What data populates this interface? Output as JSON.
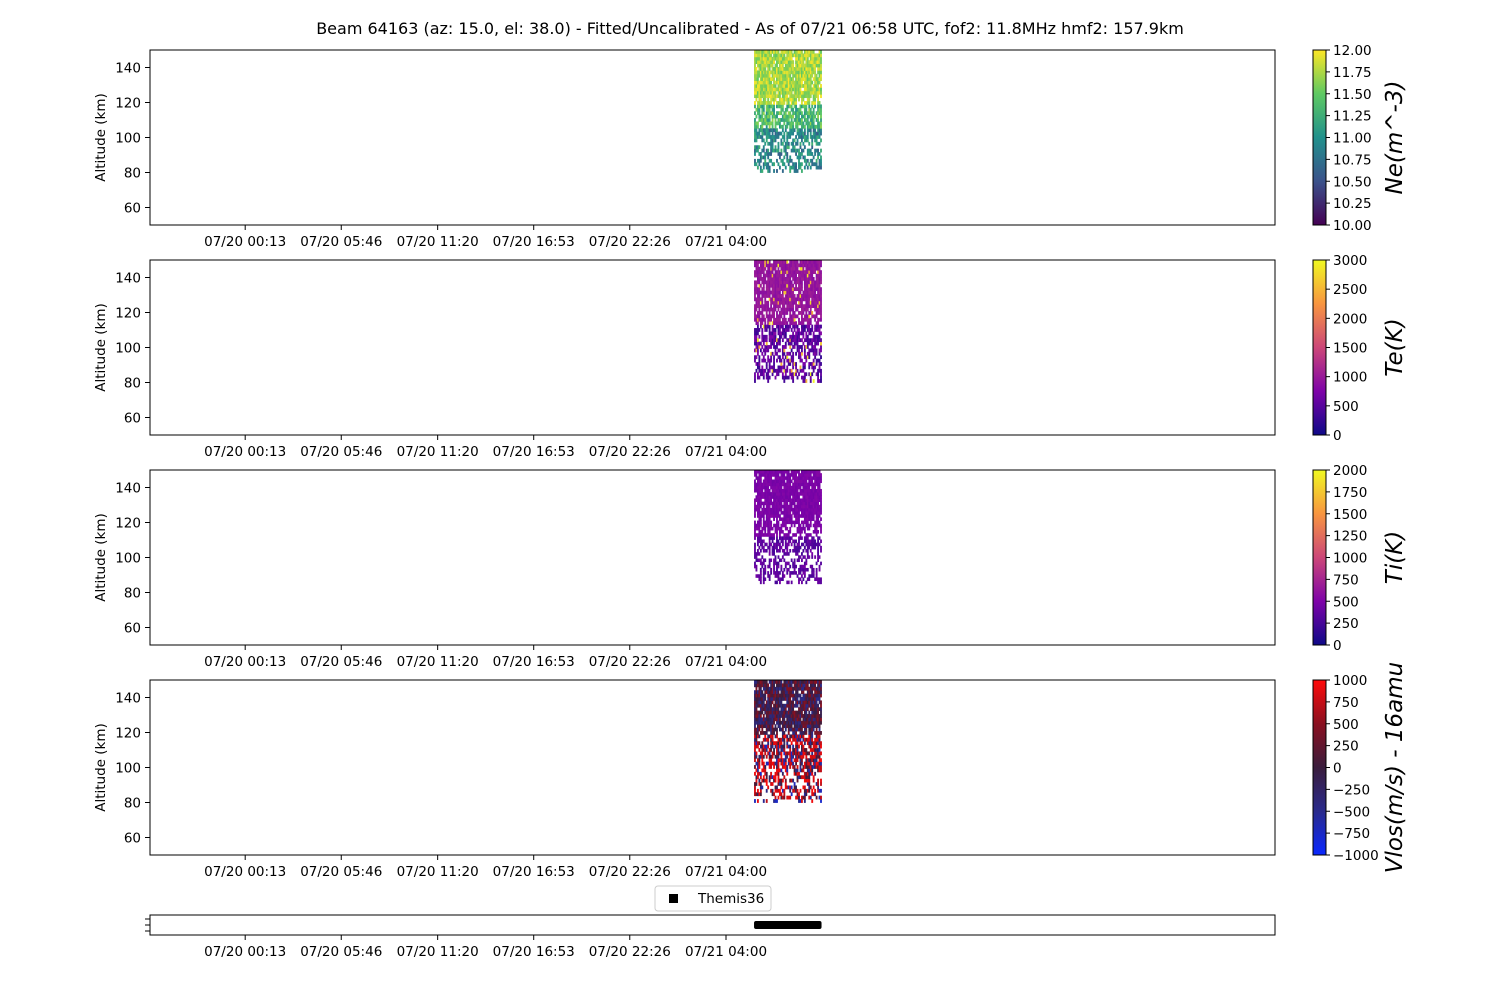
{
  "figure": {
    "title": "Beam 64163 (az: 15.0, el: 38.0) - Fitted/Uncalibrated - As of 07/21 06:58 UTC, fof2: 11.8MHz  hmf2: 157.9km"
  },
  "chart_data": [
    {
      "type": "heatmap",
      "name": "ne",
      "ylabel": "Altitude (km)",
      "yticks": [
        60,
        80,
        100,
        120,
        140
      ],
      "ylim": [
        50,
        150
      ],
      "xlim_hours": [
        -5.5,
        59.5
      ],
      "xticks": [
        "07/20 00:13",
        "07/20 05:46",
        "07/20 11:20",
        "07/20 16:53",
        "07/20 22:26",
        "07/21 04:00"
      ],
      "xtick_hours": [
        0,
        5.55,
        11.12,
        16.67,
        22.22,
        27.78
      ],
      "data_time_range": [
        "07/21 05:46",
        "07/21 09:24"
      ],
      "data_alt_range": [
        80,
        150
      ],
      "colorbar": {
        "label": "Ne(m^-3)",
        "range": [
          10.0,
          12.0
        ],
        "ticks": [
          "10.00",
          "10.25",
          "10.50",
          "10.75",
          "11.00",
          "11.25",
          "11.50",
          "11.75",
          "12.00"
        ],
        "colormap": "viridis",
        "stops": [
          "#440154",
          "#3b528b",
          "#21918c",
          "#5ec962",
          "#fde725"
        ]
      }
    },
    {
      "type": "heatmap",
      "name": "te",
      "ylabel": "Altitude (km)",
      "yticks": [
        60,
        80,
        100,
        120,
        140
      ],
      "ylim": [
        50,
        150
      ],
      "xlim_hours": [
        -5.5,
        59.5
      ],
      "xticks": [
        "07/20 00:13",
        "07/20 05:46",
        "07/20 11:20",
        "07/20 16:53",
        "07/20 22:26",
        "07/21 04:00"
      ],
      "xtick_hours": [
        0,
        5.55,
        11.12,
        16.67,
        22.22,
        27.78
      ],
      "data_time_range": [
        "07/21 05:46",
        "07/21 09:24"
      ],
      "data_alt_range": [
        80,
        150
      ],
      "colorbar": {
        "label": "Te(K)",
        "range": [
          0,
          3000
        ],
        "ticks": [
          "0",
          "500",
          "1000",
          "1500",
          "2000",
          "2500",
          "3000"
        ],
        "colormap": "plasma",
        "stops": [
          "#0d0887",
          "#7e03a8",
          "#cc4778",
          "#f89540",
          "#f0f921"
        ]
      }
    },
    {
      "type": "heatmap",
      "name": "ti",
      "ylabel": "Altitude (km)",
      "yticks": [
        60,
        80,
        100,
        120,
        140
      ],
      "ylim": [
        50,
        150
      ],
      "xlim_hours": [
        -5.5,
        59.5
      ],
      "xticks": [
        "07/20 00:13",
        "07/20 05:46",
        "07/20 11:20",
        "07/20 16:53",
        "07/20 22:26",
        "07/21 04:00"
      ],
      "xtick_hours": [
        0,
        5.55,
        11.12,
        16.67,
        22.22,
        27.78
      ],
      "data_time_range": [
        "07/21 05:46",
        "07/21 09:24"
      ],
      "data_alt_range": [
        85,
        150
      ],
      "colorbar": {
        "label": "Ti(K)",
        "range": [
          0,
          2000
        ],
        "ticks": [
          "0",
          "250",
          "500",
          "750",
          "1000",
          "1250",
          "1500",
          "1750",
          "2000"
        ],
        "colormap": "plasma",
        "stops": [
          "#0d0887",
          "#7e03a8",
          "#cc4778",
          "#f89540",
          "#f0f921"
        ]
      }
    },
    {
      "type": "heatmap",
      "name": "vlos",
      "ylabel": "Altitude (km)",
      "yticks": [
        60,
        80,
        100,
        120,
        140
      ],
      "ylim": [
        50,
        150
      ],
      "xlim_hours": [
        -5.5,
        59.5
      ],
      "xticks": [
        "07/20 00:13",
        "07/20 05:46",
        "07/20 11:20",
        "07/20 16:53",
        "07/20 22:26",
        "07/21 04:00"
      ],
      "xtick_hours": [
        0,
        5.55,
        11.12,
        16.67,
        22.22,
        27.78
      ],
      "data_time_range": [
        "07/21 05:46",
        "07/21 09:24"
      ],
      "data_alt_range": [
        80,
        150
      ],
      "colorbar": {
        "label": "Vlos(m/s) - 16amu",
        "range": [
          -1000,
          1000
        ],
        "ticks": [
          "−1000",
          "−750",
          "−500",
          "−250",
          "0",
          "250",
          "500",
          "750",
          "1000"
        ],
        "colormap": "bwr-dark",
        "stops": [
          "#0a28ff",
          "#2a2a8c",
          "#3a1d3d",
          "#8a1020",
          "#ff0a0a"
        ]
      }
    },
    {
      "type": "timeline",
      "name": "modes",
      "legend": {
        "label": "Themis36",
        "marker": "square",
        "color": "#000000"
      },
      "xticks": [
        "07/20 00:13",
        "07/20 05:46",
        "07/20 11:20",
        "07/20 16:53",
        "07/20 22:26",
        "07/21 04:00"
      ],
      "xtick_hours": [
        0,
        5.55,
        11.12,
        16.67,
        22.22,
        27.78
      ],
      "xlim_hours": [
        -5.5,
        59.5
      ],
      "segments": [
        {
          "start_hour": 29.4,
          "end_hour": 33.3,
          "label": "Themis36"
        }
      ]
    }
  ]
}
